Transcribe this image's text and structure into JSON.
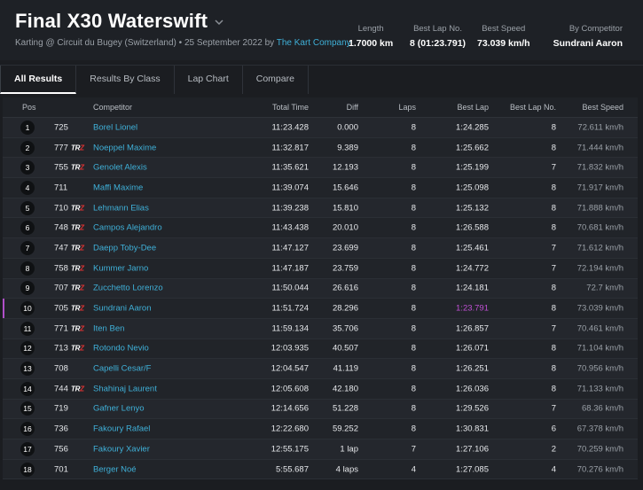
{
  "header": {
    "title": "Final X30 Waterswift",
    "subtitle_prefix": "Karting @ Circuit du Bugey (Switzerland) • 25 September 2022 by",
    "organizer": "The Kart Company",
    "stats": [
      {
        "label": "Length",
        "value": "1.7000 km"
      },
      {
        "label": "Best Lap No.",
        "value": "8 (01:23.791)"
      },
      {
        "label": "Best Speed",
        "value": "73.039 km/h"
      },
      {
        "label": "By Competitor",
        "value": "Sundrani Aaron"
      }
    ]
  },
  "tabs": [
    "All Results",
    "Results By Class",
    "Lap Chart",
    "Compare"
  ],
  "table": {
    "columns": [
      "Pos",
      "Competitor",
      "Total Time",
      "Diff",
      "Laps",
      "Best Lap",
      "Best Lap No.",
      "Best Speed"
    ],
    "rows": [
      {
        "pos": "1",
        "num": "725",
        "tr": false,
        "name": "Borel Lionel",
        "total": "11:23.428",
        "diff": "0.000",
        "laps": "8",
        "best": "1:24.285",
        "bestno": "8",
        "speed": "72.611 km/h"
      },
      {
        "pos": "2",
        "num": "777",
        "tr": true,
        "name": "Noeppel Maxime",
        "total": "11:32.817",
        "diff": "9.389",
        "laps": "8",
        "best": "1:25.662",
        "bestno": "8",
        "speed": "71.444 km/h"
      },
      {
        "pos": "3",
        "num": "755",
        "tr": true,
        "name": "Genolet Alexis",
        "total": "11:35.621",
        "diff": "12.193",
        "laps": "8",
        "best": "1:25.199",
        "bestno": "7",
        "speed": "71.832 km/h"
      },
      {
        "pos": "4",
        "num": "711",
        "tr": false,
        "name": "Maffi Maxime",
        "total": "11:39.074",
        "diff": "15.646",
        "laps": "8",
        "best": "1:25.098",
        "bestno": "8",
        "speed": "71.917 km/h"
      },
      {
        "pos": "5",
        "num": "710",
        "tr": true,
        "name": "Lehmann Elias",
        "total": "11:39.238",
        "diff": "15.810",
        "laps": "8",
        "best": "1:25.132",
        "bestno": "8",
        "speed": "71.888 km/h"
      },
      {
        "pos": "6",
        "num": "748",
        "tr": true,
        "name": "Campos Alejandro",
        "total": "11:43.438",
        "diff": "20.010",
        "laps": "8",
        "best": "1:26.588",
        "bestno": "8",
        "speed": "70.681 km/h"
      },
      {
        "pos": "7",
        "num": "747",
        "tr": true,
        "name": "Daepp Toby-Dee",
        "total": "11:47.127",
        "diff": "23.699",
        "laps": "8",
        "best": "1:25.461",
        "bestno": "7",
        "speed": "71.612 km/h"
      },
      {
        "pos": "8",
        "num": "758",
        "tr": true,
        "name": "Kummer Jarno",
        "total": "11:47.187",
        "diff": "23.759",
        "laps": "8",
        "best": "1:24.772",
        "bestno": "7",
        "speed": "72.194 km/h"
      },
      {
        "pos": "9",
        "num": "707",
        "tr": true,
        "name": "Zucchetto Lorenzo",
        "total": "11:50.044",
        "diff": "26.616",
        "laps": "8",
        "best": "1:24.181",
        "bestno": "8",
        "speed": "72.7 km/h"
      },
      {
        "pos": "10",
        "num": "705",
        "tr": true,
        "name": "Sundrani Aaron",
        "total": "11:51.724",
        "diff": "28.296",
        "laps": "8",
        "best": "1:23.791",
        "bestno": "8",
        "speed": "73.039 km/h",
        "highlight": true
      },
      {
        "pos": "11",
        "num": "771",
        "tr": true,
        "name": "Iten Ben",
        "total": "11:59.134",
        "diff": "35.706",
        "laps": "8",
        "best": "1:26.857",
        "bestno": "7",
        "speed": "70.461 km/h"
      },
      {
        "pos": "12",
        "num": "713",
        "tr": true,
        "name": "Rotondo Nevio",
        "total": "12:03.935",
        "diff": "40.507",
        "laps": "8",
        "best": "1:26.071",
        "bestno": "8",
        "speed": "71.104 km/h"
      },
      {
        "pos": "13",
        "num": "708",
        "tr": false,
        "name": "Capelli Cesar/F",
        "total": "12:04.547",
        "diff": "41.119",
        "laps": "8",
        "best": "1:26.251",
        "bestno": "8",
        "speed": "70.956 km/h"
      },
      {
        "pos": "14",
        "num": "744",
        "tr": true,
        "name": "Shahinaj Laurent",
        "total": "12:05.608",
        "diff": "42.180",
        "laps": "8",
        "best": "1:26.036",
        "bestno": "8",
        "speed": "71.133 km/h"
      },
      {
        "pos": "15",
        "num": "719",
        "tr": false,
        "name": "Gafner Lenyo",
        "total": "12:14.656",
        "diff": "51.228",
        "laps": "8",
        "best": "1:29.526",
        "bestno": "7",
        "speed": "68.36 km/h"
      },
      {
        "pos": "16",
        "num": "736",
        "tr": false,
        "name": "Fakoury Rafael",
        "total": "12:22.680",
        "diff": "59.252",
        "laps": "8",
        "best": "1:30.831",
        "bestno": "6",
        "speed": "67.378 km/h"
      },
      {
        "pos": "17",
        "num": "756",
        "tr": false,
        "name": "Fakoury Xavier",
        "total": "12:55.175",
        "diff": "1 lap",
        "laps": "7",
        "best": "1:27.106",
        "bestno": "2",
        "speed": "70.259 km/h"
      },
      {
        "pos": "18",
        "num": "701",
        "tr": false,
        "name": "Berger Noé",
        "total": "5:55.687",
        "diff": "4 laps",
        "laps": "4",
        "best": "1:27.085",
        "bestno": "4",
        "speed": "70.276 km/h"
      }
    ]
  },
  "colors": {
    "accent": "#3fb0d8",
    "best_lap_highlight": "#c050d4",
    "background": "#1b1d21"
  }
}
